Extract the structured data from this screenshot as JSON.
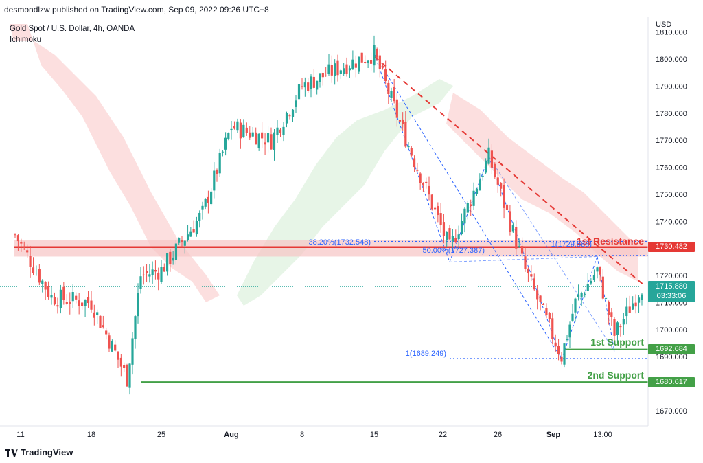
{
  "header": {
    "publisher_line": "desmondlzw published on TradingView.com, Sep 09, 2022 09:26 UTC+8",
    "symbol_line": "Gold Spot / U.S. Dollar, 4h, OANDA",
    "indicator": "Ichimoku",
    "currency": "USD"
  },
  "footer": {
    "brand": "TradingView"
  },
  "colors": {
    "up": "#26a69a",
    "down": "#ef5350",
    "resistance": "#e53935",
    "support": "#43a047",
    "fib": "#2962ff",
    "cloud_red": "#fbd9d9",
    "cloud_green": "#e4f4e4"
  },
  "tags": {
    "resistance": "1730.482",
    "support1": "1692.684",
    "support2": "1680.617",
    "price": "1715.880",
    "timer": "03:33:06"
  },
  "annotations": {
    "res1": "1st Resistance",
    "sup1": "1st Support",
    "sup2": "2nd Support",
    "fib382": "38.20%(1732.548)",
    "fib50": "50.00%(1727.387)",
    "fib1_top": "1(1729.588)",
    "fib1_bottom": "1(1689.249)"
  },
  "chart_data": {
    "type": "candlestick",
    "y_ticks": [
      "1810.000",
      "1800.000",
      "1790.000",
      "1780.000",
      "1770.000",
      "1760.000",
      "1750.000",
      "1740.000",
      "1730.000",
      "1720.000",
      "1710.000",
      "1700.000",
      "1690.000",
      "1670.000"
    ],
    "x_ticks": [
      "11",
      "18",
      "25",
      "Aug",
      "8",
      "15",
      "22",
      "26",
      "Sep",
      "13:00"
    ],
    "ylim": [
      1663,
      1812
    ],
    "levels": {
      "resistance_1": 1730.482,
      "support_1": 1692.684,
      "support_2": 1680.617,
      "last_price": 1715.88
    },
    "price_path": [
      {
        "date": "Jul 11",
        "close": 1735
      },
      {
        "date": "Jul 15",
        "close": 1712
      },
      {
        "date": "Jul 18",
        "close": 1710
      },
      {
        "date": "Jul 21",
        "close": 1682
      },
      {
        "date": "Jul 22",
        "close": 1720
      },
      {
        "date": "Jul 25",
        "close": 1722
      },
      {
        "date": "Jul 28",
        "close": 1743
      },
      {
        "date": "Aug 1",
        "close": 1775
      },
      {
        "date": "Aug 5",
        "close": 1770
      },
      {
        "date": "Aug 8",
        "close": 1790
      },
      {
        "date": "Aug 12",
        "close": 1798
      },
      {
        "date": "Aug 15",
        "close": 1802
      },
      {
        "date": "Aug 18",
        "close": 1768
      },
      {
        "date": "Aug 22",
        "close": 1730
      },
      {
        "date": "Aug 25",
        "close": 1764
      },
      {
        "date": "Aug 29",
        "close": 1722
      },
      {
        "date": "Sep 1",
        "close": 1690
      },
      {
        "date": "Sep 2",
        "close": 1710
      },
      {
        "date": "Sep 5",
        "close": 1722
      },
      {
        "date": "Sep 7",
        "close": 1698
      },
      {
        "date": "Sep 9",
        "close": 1716
      }
    ]
  }
}
